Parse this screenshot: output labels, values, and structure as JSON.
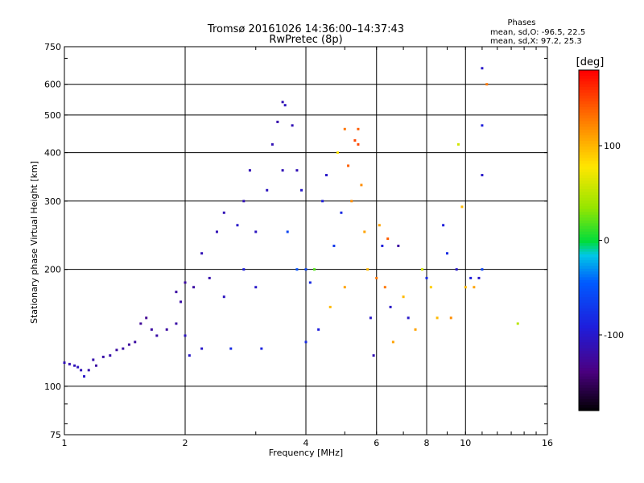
{
  "chart_data": {
    "type": "scatter",
    "title": "Tromsø 20161026 14:36:00–14:37:43",
    "subtitle": "RwPretec (8p)",
    "xlabel": "Frequency [MHz]",
    "ylabel": "Stationary phase Virtual Height [km]",
    "x_scale": "log",
    "y_scale": "log",
    "xlim": [
      1,
      16
    ],
    "ylim": [
      75,
      750
    ],
    "x_ticks": [
      1,
      2,
      4,
      6,
      8,
      10,
      16
    ],
    "y_ticks": [
      75,
      100,
      200,
      300,
      400,
      500,
      600,
      750
    ],
    "x_tick_labels": [
      "1",
      "2",
      "4",
      "6",
      "8",
      "10",
      "16"
    ],
    "y_tick_labels": [
      "75",
      "100",
      "200",
      "300",
      "400",
      "500",
      "600",
      "750"
    ],
    "grid": true,
    "stats": {
      "header": "Phases",
      "line_o": "mean, sd,O: -96.5, 22.5",
      "line_x": "mean, sd,X:  97.2, 25.3"
    },
    "colorbar": {
      "label": "[deg]",
      "range": [
        -180,
        180
      ],
      "ticks": [
        100,
        0,
        -100
      ],
      "tick_labels": [
        "100",
        "0",
        "-100"
      ]
    },
    "series": [
      {
        "name": "",
        "points": [
          [
            1.0,
            115,
            -110
          ],
          [
            1.03,
            114,
            -112
          ],
          [
            1.06,
            113,
            -108
          ],
          [
            1.08,
            112,
            -105
          ],
          [
            1.1,
            110,
            -110
          ],
          [
            1.12,
            106,
            -100
          ],
          [
            1.15,
            110,
            -115
          ],
          [
            1.18,
            117,
            -115
          ],
          [
            1.2,
            113,
            -120
          ],
          [
            1.25,
            119,
            -118
          ],
          [
            1.3,
            120,
            -115
          ],
          [
            1.35,
            124,
            -120
          ],
          [
            1.4,
            125,
            -118
          ],
          [
            1.45,
            128,
            -122
          ],
          [
            1.5,
            130,
            -120
          ],
          [
            1.55,
            145,
            -125
          ],
          [
            1.6,
            150,
            -128
          ],
          [
            1.65,
            140,
            -120
          ],
          [
            1.7,
            135,
            -118
          ],
          [
            1.8,
            140,
            -120
          ],
          [
            1.9,
            145,
            -118
          ],
          [
            1.9,
            175,
            -120
          ],
          [
            1.95,
            165,
            -118
          ],
          [
            2.0,
            185,
            -120
          ],
          [
            2.0,
            135,
            -105
          ],
          [
            2.05,
            120,
            -100
          ],
          [
            2.1,
            180,
            -120
          ],
          [
            2.2,
            220,
            -110
          ],
          [
            2.2,
            125,
            -100
          ],
          [
            2.3,
            190,
            -115
          ],
          [
            2.4,
            250,
            -110
          ],
          [
            2.5,
            170,
            -105
          ],
          [
            2.5,
            280,
            -110
          ],
          [
            2.6,
            125,
            -80
          ],
          [
            2.7,
            260,
            -100
          ],
          [
            2.8,
            300,
            -110
          ],
          [
            2.8,
            200,
            -90
          ],
          [
            2.9,
            360,
            -110
          ],
          [
            3.0,
            180,
            -100
          ],
          [
            3.0,
            250,
            -105
          ],
          [
            3.1,
            125,
            -85
          ],
          [
            3.2,
            320,
            -105
          ],
          [
            3.3,
            420,
            -110
          ],
          [
            3.4,
            480,
            -115
          ],
          [
            3.5,
            540,
            -112
          ],
          [
            3.5,
            360,
            -110
          ],
          [
            3.55,
            530,
            -105
          ],
          [
            3.6,
            250,
            -60
          ],
          [
            3.7,
            470,
            -110
          ],
          [
            3.8,
            360,
            -110
          ],
          [
            3.8,
            200,
            -50
          ],
          [
            3.9,
            320,
            -100
          ],
          [
            4.0,
            200,
            -60
          ],
          [
            4.0,
            130,
            -80
          ],
          [
            4.1,
            185,
            -80
          ],
          [
            4.2,
            200,
            20
          ],
          [
            4.3,
            140,
            -90
          ],
          [
            4.4,
            300,
            -90
          ],
          [
            4.5,
            350,
            -100
          ],
          [
            4.6,
            160,
            100
          ],
          [
            4.7,
            230,
            -70
          ],
          [
            4.8,
            400,
            80
          ],
          [
            4.9,
            280,
            -80
          ],
          [
            5.0,
            460,
            130
          ],
          [
            5.0,
            180,
            110
          ],
          [
            5.1,
            370,
            140
          ],
          [
            5.2,
            300,
            120
          ],
          [
            5.3,
            430,
            150
          ],
          [
            5.4,
            460,
            140
          ],
          [
            5.4,
            420,
            150
          ],
          [
            5.5,
            330,
            120
          ],
          [
            5.6,
            250,
            110
          ],
          [
            5.7,
            200,
            100
          ],
          [
            5.8,
            150,
            -100
          ],
          [
            5.9,
            120,
            -110
          ],
          [
            6.0,
            190,
            130
          ],
          [
            6.1,
            260,
            110
          ],
          [
            6.2,
            230,
            -90
          ],
          [
            6.3,
            180,
            130
          ],
          [
            6.4,
            240,
            140
          ],
          [
            6.5,
            160,
            -100
          ],
          [
            6.6,
            130,
            110
          ],
          [
            6.8,
            230,
            -120
          ],
          [
            7.0,
            170,
            100
          ],
          [
            7.2,
            150,
            -100
          ],
          [
            7.5,
            140,
            110
          ],
          [
            7.8,
            200,
            60
          ],
          [
            8.0,
            190,
            -80
          ],
          [
            8.2,
            180,
            90
          ],
          [
            8.5,
            150,
            100
          ],
          [
            8.8,
            260,
            -90
          ],
          [
            9.0,
            220,
            -80
          ],
          [
            9.2,
            150,
            120
          ],
          [
            9.5,
            200,
            -100
          ],
          [
            9.6,
            420,
            60
          ],
          [
            9.8,
            290,
            100
          ],
          [
            10.0,
            180,
            100
          ],
          [
            10.3,
            190,
            -90
          ],
          [
            10.5,
            180,
            110
          ],
          [
            10.8,
            190,
            -100
          ],
          [
            11.0,
            660,
            -100
          ],
          [
            11.0,
            470,
            -90
          ],
          [
            11.0,
            350,
            -100
          ],
          [
            11.0,
            200,
            -60
          ],
          [
            11.3,
            600,
            130
          ],
          [
            13.5,
            145,
            50
          ]
        ]
      }
    ]
  }
}
